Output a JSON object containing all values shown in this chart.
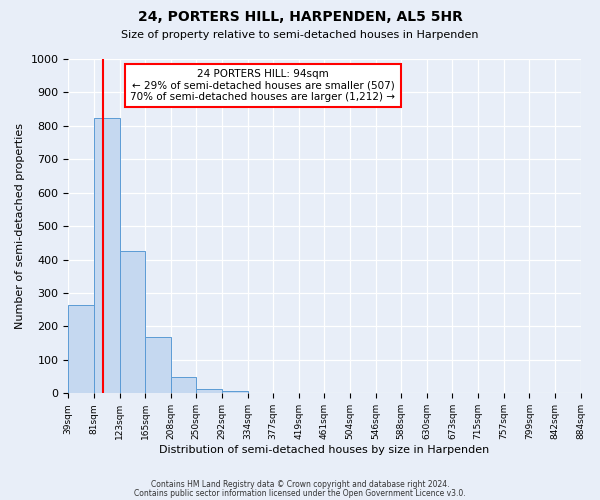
{
  "title": "24, PORTERS HILL, HARPENDEN, AL5 5HR",
  "subtitle": "Size of property relative to semi-detached houses in Harpenden",
  "xlabel": "Distribution of semi-detached houses by size in Harpenden",
  "ylabel": "Number of semi-detached properties",
  "bar_values": [
    265,
    825,
    425,
    168,
    50,
    12,
    8,
    0,
    0,
    0,
    0,
    0,
    0,
    0,
    0,
    0,
    0,
    0,
    0,
    0
  ],
  "bin_labels": [
    "39sqm",
    "81sqm",
    "123sqm",
    "165sqm",
    "208sqm",
    "250sqm",
    "292sqm",
    "334sqm",
    "377sqm",
    "419sqm",
    "461sqm",
    "504sqm",
    "546sqm",
    "588sqm",
    "630sqm",
    "673sqm",
    "715sqm",
    "757sqm",
    "799sqm",
    "842sqm",
    "884sqm"
  ],
  "bar_color": "#c5d8f0",
  "bar_edge_color": "#5b9bd5",
  "red_line_x": 1.35,
  "annotation_title": "24 PORTERS HILL: 94sqm",
  "annotation_line2": "← 29% of semi-detached houses are smaller (507)",
  "annotation_line3": "70% of semi-detached houses are larger (1,212) →",
  "ylim": [
    0,
    1000
  ],
  "yticks": [
    0,
    100,
    200,
    300,
    400,
    500,
    600,
    700,
    800,
    900,
    1000
  ],
  "footer1": "Contains HM Land Registry data © Crown copyright and database right 2024.",
  "footer2": "Contains public sector information licensed under the Open Government Licence v3.0.",
  "bg_color": "#e8eef8",
  "plot_bg_color": "#e8eef8"
}
